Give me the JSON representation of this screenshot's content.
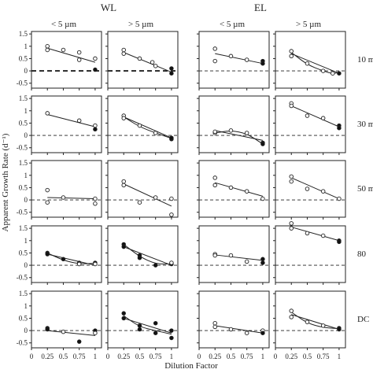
{
  "chart_data": {
    "type": "scatter",
    "group_labels": [
      "WL",
      "EL"
    ],
    "column_labels": [
      "< 5 µm",
      "> 5 µm",
      "< 5 µm",
      "> 5 µm"
    ],
    "row_labels": [
      "10 m",
      "30 m",
      "50 m",
      "80",
      "DC"
    ],
    "ylabel": "Apparent Growth Rate (d⁻¹)",
    "xlabel": "Dilution Factor",
    "x_ticks": [
      "0",
      "0.25",
      "0.5",
      "0.75",
      "1"
    ],
    "y_ticks": [
      "-0.5",
      "0",
      "0.5",
      "1",
      "1.5"
    ],
    "xlim": [
      0,
      1.1
    ],
    "ylim": [
      -0.7,
      1.6
    ],
    "marker_legend": {
      "open": "open circle",
      "filled": "filled circle"
    },
    "panels": [
      [
        {
          "points": [
            [
              0.25,
              1.0,
              "o"
            ],
            [
              0.25,
              0.85,
              "o"
            ],
            [
              0.5,
              0.85,
              "o"
            ],
            [
              0.75,
              0.75,
              "o"
            ],
            [
              0.75,
              0.45,
              "o"
            ],
            [
              1,
              0.5,
              "o"
            ],
            [
              1,
              0.05,
              "f"
            ]
          ],
          "fit": [
            [
              0.25,
              0.92
            ],
            [
              1,
              0.35
            ]
          ]
        },
        {
          "points": [
            [
              0.25,
              0.85,
              "o"
            ],
            [
              0.25,
              0.7,
              "o"
            ],
            [
              0.5,
              0.5,
              "o"
            ],
            [
              0.7,
              0.35,
              "o"
            ],
            [
              0.75,
              0.2,
              "o"
            ],
            [
              1,
              0.1,
              "f"
            ],
            [
              1,
              -0.1,
              "f"
            ]
          ],
          "fit": [
            [
              0.25,
              0.75
            ],
            [
              1,
              -0.05
            ]
          ]
        },
        {
          "points": [
            [
              0.25,
              0.9,
              "o"
            ],
            [
              0.25,
              0.4,
              "o"
            ],
            [
              0.5,
              0.6,
              "o"
            ],
            [
              0.75,
              0.45,
              "o"
            ],
            [
              1,
              0.4,
              "f"
            ],
            [
              1,
              0.3,
              "f"
            ]
          ],
          "fit": [
            [
              0.25,
              0.7
            ],
            [
              1,
              0.3
            ]
          ]
        },
        {
          "points": [
            [
              0.25,
              0.8,
              "o"
            ],
            [
              0.25,
              0.6,
              "o"
            ],
            [
              0.5,
              0.3,
              "o"
            ],
            [
              0.75,
              0.0,
              "o"
            ],
            [
              0.9,
              -0.1,
              "o"
            ],
            [
              1,
              -0.1,
              "f"
            ]
          ],
          "fit": [
            [
              0.25,
              0.7
            ],
            [
              1,
              -0.1
            ]
          ],
          "curve": [
            [
              0.25,
              0.75
            ],
            [
              0.5,
              0.25
            ],
            [
              0.75,
              0.0
            ],
            [
              0.9,
              -0.12
            ],
            [
              1,
              -0.05
            ]
          ]
        }
      ],
      [
        {
          "points": [
            [
              0.25,
              0.9,
              "o"
            ],
            [
              0.75,
              0.6,
              "o"
            ],
            [
              1,
              0.4,
              "o"
            ],
            [
              1,
              0.25,
              "f"
            ]
          ],
          "fit": [
            [
              0.25,
              0.85
            ],
            [
              1,
              0.35
            ]
          ]
        },
        {
          "points": [
            [
              0.25,
              0.8,
              "o"
            ],
            [
              0.25,
              0.7,
              "o"
            ],
            [
              0.5,
              0.4,
              "o"
            ],
            [
              0.75,
              0.1,
              "o"
            ],
            [
              1,
              -0.15,
              "f"
            ],
            [
              1,
              -0.1,
              "f"
            ]
          ],
          "fit": [
            [
              0.25,
              0.75
            ],
            [
              1,
              -0.1
            ]
          ],
          "curve": [
            [
              0.25,
              0.75
            ],
            [
              0.5,
              0.35
            ],
            [
              0.75,
              0.1
            ],
            [
              1,
              -0.12
            ]
          ]
        },
        {
          "points": [
            [
              0.25,
              0.1,
              "o"
            ],
            [
              0.25,
              0.15,
              "o"
            ],
            [
              0.5,
              0.2,
              "o"
            ],
            [
              0.75,
              0.1,
              "o"
            ],
            [
              1,
              -0.3,
              "f"
            ],
            [
              1,
              -0.35,
              "f"
            ]
          ],
          "fit": [
            [
              0.25,
              0.2
            ],
            [
              1,
              -0.2
            ]
          ],
          "curve": [
            [
              0.25,
              0.1
            ],
            [
              0.5,
              0.2
            ],
            [
              0.75,
              0.08
            ],
            [
              1,
              -0.35
            ]
          ]
        },
        {
          "points": [
            [
              0.25,
              1.3,
              "o"
            ],
            [
              0.25,
              1.2,
              "o"
            ],
            [
              0.5,
              0.8,
              "o"
            ],
            [
              0.75,
              0.7,
              "o"
            ],
            [
              1,
              0.4,
              "f"
            ],
            [
              1,
              0.3,
              "f"
            ]
          ],
          "fit": [
            [
              0.25,
              1.2
            ],
            [
              1,
              0.35
            ]
          ]
        }
      ],
      [
        {
          "points": [
            [
              0.25,
              0.4,
              "o"
            ],
            [
              0.25,
              -0.1,
              "o"
            ],
            [
              0.5,
              0.1,
              "o"
            ],
            [
              1,
              0.05,
              "o"
            ],
            [
              1,
              -0.15,
              "o"
            ]
          ],
          "fit": [
            [
              0.25,
              0.1
            ],
            [
              1,
              0.05
            ]
          ]
        },
        {
          "points": [
            [
              0.25,
              0.75,
              "o"
            ],
            [
              0.25,
              0.6,
              "o"
            ],
            [
              0.5,
              -0.1,
              "o"
            ],
            [
              0.75,
              0.1,
              "o"
            ],
            [
              1,
              0.05,
              "o"
            ],
            [
              1,
              -0.6,
              "o"
            ]
          ],
          "fit": [
            [
              0.25,
              0.65
            ],
            [
              1,
              -0.25
            ]
          ]
        },
        {
          "points": [
            [
              0.25,
              0.9,
              "o"
            ],
            [
              0.25,
              0.6,
              "o"
            ],
            [
              0.5,
              0.5,
              "o"
            ],
            [
              0.75,
              0.35,
              "o"
            ],
            [
              1,
              0.05,
              "o"
            ]
          ],
          "fit": [
            [
              0.25,
              0.7
            ],
            [
              1,
              0.15
            ]
          ]
        },
        {
          "points": [
            [
              0.25,
              0.95,
              "o"
            ],
            [
              0.25,
              0.75,
              "o"
            ],
            [
              0.5,
              0.45,
              "o"
            ],
            [
              0.75,
              0.35,
              "o"
            ],
            [
              1,
              0.05,
              "o"
            ]
          ],
          "fit": [
            [
              0.25,
              0.9
            ],
            [
              1,
              0.05
            ]
          ]
        }
      ],
      [
        {
          "points": [
            [
              0.25,
              0.5,
              "f"
            ],
            [
              0.25,
              0.45,
              "f"
            ],
            [
              0.5,
              0.25,
              "f"
            ],
            [
              0.75,
              0.1,
              "f"
            ],
            [
              0.75,
              0.05,
              "o"
            ],
            [
              1,
              0.1,
              "f"
            ],
            [
              1,
              0.05,
              "o"
            ]
          ],
          "fit": [
            [
              0.25,
              0.45
            ],
            [
              1,
              0.0
            ]
          ],
          "curve": [
            [
              0.25,
              0.5
            ],
            [
              0.5,
              0.2
            ],
            [
              0.75,
              0.05
            ],
            [
              1,
              0.08
            ]
          ]
        },
        {
          "points": [
            [
              0.25,
              0.85,
              "f"
            ],
            [
              0.25,
              0.75,
              "f"
            ],
            [
              0.5,
              0.4,
              "f"
            ],
            [
              0.5,
              0.3,
              "f"
            ],
            [
              0.75,
              0.0,
              "f"
            ],
            [
              1,
              0.05,
              "f"
            ],
            [
              1,
              0.1,
              "o"
            ]
          ],
          "fit": [
            [
              0.25,
              0.75
            ],
            [
              1,
              0.0
            ]
          ],
          "curve": [
            [
              0.25,
              0.85
            ],
            [
              0.5,
              0.35
            ],
            [
              0.75,
              0.05
            ],
            [
              1,
              0.05
            ]
          ]
        },
        {
          "points": [
            [
              0.25,
              0.45,
              "o"
            ],
            [
              0.25,
              0.4,
              "o"
            ],
            [
              0.5,
              0.4,
              "o"
            ],
            [
              0.75,
              0.15,
              "o"
            ],
            [
              1,
              0.25,
              "f"
            ],
            [
              1,
              0.1,
              "f"
            ]
          ],
          "fit": [
            [
              0.25,
              0.42
            ],
            [
              1,
              0.2
            ]
          ]
        },
        {
          "points": [
            [
              0.25,
              1.7,
              "o"
            ],
            [
              0.25,
              1.5,
              "o"
            ],
            [
              0.5,
              1.3,
              "o"
            ],
            [
              0.75,
              1.2,
              "o"
            ],
            [
              1,
              1.0,
              "f"
            ],
            [
              1,
              0.95,
              "f"
            ]
          ],
          "fit": [
            [
              0.25,
              1.55
            ],
            [
              1,
              1.0
            ]
          ]
        }
      ],
      [
        {
          "points": [
            [
              0.25,
              0.1,
              "f"
            ],
            [
              0.25,
              0.05,
              "f"
            ],
            [
              0.5,
              -0.05,
              "o"
            ],
            [
              0.75,
              -0.45,
              "f"
            ],
            [
              1,
              0.0,
              "f"
            ],
            [
              1,
              -0.1,
              "o"
            ]
          ],
          "fit": [
            [
              0.25,
              0.0
            ],
            [
              1,
              -0.2
            ]
          ]
        },
        {
          "points": [
            [
              0.25,
              0.7,
              "f"
            ],
            [
              0.25,
              0.5,
              "f"
            ],
            [
              0.5,
              0.2,
              "f"
            ],
            [
              0.5,
              0.05,
              "f"
            ],
            [
              0.75,
              0.3,
              "f"
            ],
            [
              0.75,
              -0.1,
              "f"
            ],
            [
              1,
              0.0,
              "f"
            ],
            [
              1,
              -0.3,
              "f"
            ]
          ],
          "fit": [
            [
              0.25,
              0.5
            ],
            [
              1,
              -0.1
            ]
          ],
          "curve": [
            [
              0.25,
              0.6
            ],
            [
              0.5,
              0.15
            ],
            [
              0.75,
              0.0
            ],
            [
              1,
              -0.15
            ]
          ]
        },
        {
          "points": [
            [
              0.25,
              0.3,
              "o"
            ],
            [
              0.25,
              0.15,
              "o"
            ],
            [
              0.5,
              0.05,
              "o"
            ],
            [
              0.75,
              -0.1,
              "o"
            ],
            [
              1,
              0.0,
              "o"
            ],
            [
              1,
              -0.1,
              "f"
            ]
          ],
          "fit": [
            [
              0.25,
              0.2
            ],
            [
              1,
              -0.1
            ]
          ]
        },
        {
          "points": [
            [
              0.25,
              0.8,
              "o"
            ],
            [
              0.25,
              0.55,
              "o"
            ],
            [
              0.5,
              0.35,
              "o"
            ],
            [
              0.75,
              0.2,
              "o"
            ],
            [
              1,
              0.1,
              "f"
            ],
            [
              1,
              0.05,
              "f"
            ]
          ],
          "fit": [
            [
              0.25,
              0.65
            ],
            [
              1,
              0.05
            ]
          ],
          "curve": [
            [
              0.25,
              0.75
            ],
            [
              0.5,
              0.3
            ],
            [
              0.75,
              0.12
            ],
            [
              1,
              0.08
            ]
          ]
        }
      ]
    ]
  }
}
